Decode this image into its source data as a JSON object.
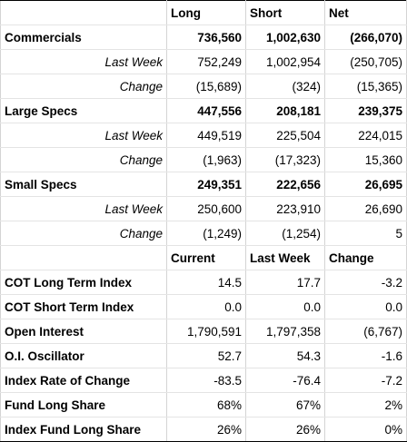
{
  "header": {
    "col1": "Long",
    "col2": "Short",
    "col3": "Net"
  },
  "groups": [
    {
      "name": "Commercials",
      "main": [
        "736,560",
        "1,002,630",
        "(266,070)"
      ],
      "last_week_label": "Last Week",
      "last_week": [
        "752,249",
        "1,002,954",
        "(250,705)"
      ],
      "change_label": "Change",
      "change": [
        "(15,689)",
        "(324)",
        "(15,365)"
      ]
    },
    {
      "name": "Large Specs",
      "main": [
        "447,556",
        "208,181",
        "239,375"
      ],
      "last_week_label": "Last Week",
      "last_week": [
        "449,519",
        "225,504",
        "224,015"
      ],
      "change_label": "Change",
      "change": [
        "(1,963)",
        "(17,323)",
        "15,360"
      ]
    },
    {
      "name": "Small Specs",
      "main": [
        "249,351",
        "222,656",
        "26,695"
      ],
      "last_week_label": "Last Week",
      "last_week": [
        "250,600",
        "223,910",
        "26,690"
      ],
      "change_label": "Change",
      "change": [
        "(1,249)",
        "(1,254)",
        "5"
      ]
    }
  ],
  "index_header": {
    "col1": "Current",
    "col2": "Last Week",
    "col3": "Change"
  },
  "index_rows": [
    {
      "label": "COT Long Term Index",
      "values": [
        "14.5",
        "17.7",
        "-3.2"
      ]
    },
    {
      "label": "COT Short Term Index",
      "values": [
        "0.0",
        "0.0",
        "0.0"
      ]
    },
    {
      "label": "Open Interest",
      "values": [
        "1,790,591",
        "1,797,358",
        "(6,767)"
      ]
    },
    {
      "label": "O.I. Oscillator",
      "values": [
        "52.7",
        "54.3",
        "-1.6"
      ]
    },
    {
      "label": "Index Rate of Change",
      "values": [
        "-83.5",
        "-76.4",
        "-7.2"
      ]
    },
    {
      "label": "Fund Long Share",
      "values": [
        "68%",
        "67%",
        "2%"
      ]
    },
    {
      "label": "Index Fund Long Share",
      "values": [
        "26%",
        "26%",
        "0%"
      ]
    }
  ]
}
